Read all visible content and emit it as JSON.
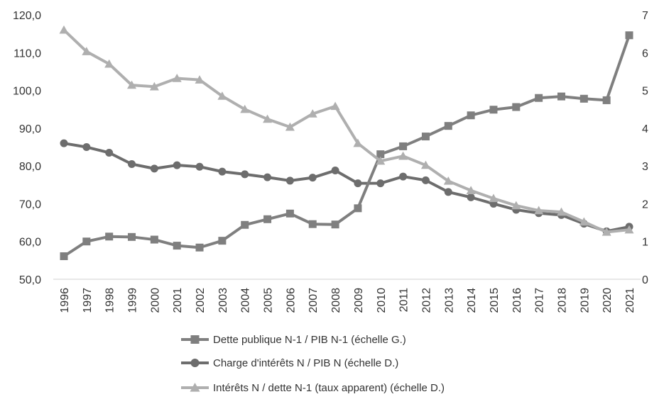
{
  "chart_data": {
    "type": "line",
    "categories": [
      "1996",
      "1997",
      "1998",
      "1999",
      "2000",
      "2001",
      "2002",
      "2003",
      "2004",
      "2005",
      "2006",
      "2007",
      "2008",
      "2009",
      "2010",
      "2011",
      "2012",
      "2013",
      "2014",
      "2015",
      "2016",
      "2017",
      "2018",
      "2019",
      "2020",
      "2021"
    ],
    "left_axis": {
      "ylim": [
        50,
        120
      ],
      "ticks": [
        "50,0",
        "60,0",
        "70,0",
        "80,0",
        "90,0",
        "100,0",
        "110,0",
        "120,0"
      ]
    },
    "right_axis": {
      "ylim": [
        0,
        7
      ],
      "ticks": [
        "0",
        "1",
        "2",
        "3",
        "4",
        "5",
        "6",
        "7"
      ]
    },
    "grid": false,
    "legend_position": "bottom",
    "series": [
      {
        "name": "Dette publique N-1 / PIB N-1 (échelle G.)",
        "axis": "left",
        "marker": "square",
        "color": "#7f7f7f",
        "values": [
          56.1,
          60.0,
          61.3,
          61.2,
          60.5,
          58.9,
          58.4,
          60.2,
          64.4,
          65.9,
          67.4,
          64.6,
          64.5,
          68.8,
          83.1,
          85.2,
          87.8,
          90.6,
          93.4,
          94.9,
          95.6,
          98.0,
          98.4,
          97.8,
          97.4,
          114.6
        ]
      },
      {
        "name": "Charge d'intérêts N / PIB N (échelle D.)",
        "axis": "right",
        "marker": "circle",
        "color": "#6d6d6d",
        "values": [
          3.6,
          3.5,
          3.35,
          3.05,
          2.93,
          3.02,
          2.98,
          2.85,
          2.78,
          2.7,
          2.61,
          2.69,
          2.88,
          2.54,
          2.54,
          2.72,
          2.62,
          2.31,
          2.17,
          2.0,
          1.84,
          1.75,
          1.7,
          1.47,
          1.27,
          1.39
        ]
      },
      {
        "name": "Intérêts N / dette N-1 (taux apparent) (échelle D.)",
        "axis": "right",
        "marker": "triangle",
        "color": "#afafaf",
        "values": [
          6.6,
          6.03,
          5.7,
          5.14,
          5.1,
          5.32,
          5.28,
          4.85,
          4.5,
          4.24,
          4.03,
          4.38,
          4.58,
          3.6,
          3.13,
          3.26,
          3.02,
          2.6,
          2.35,
          2.14,
          1.95,
          1.82,
          1.78,
          1.52,
          1.25,
          1.31
        ]
      }
    ]
  }
}
